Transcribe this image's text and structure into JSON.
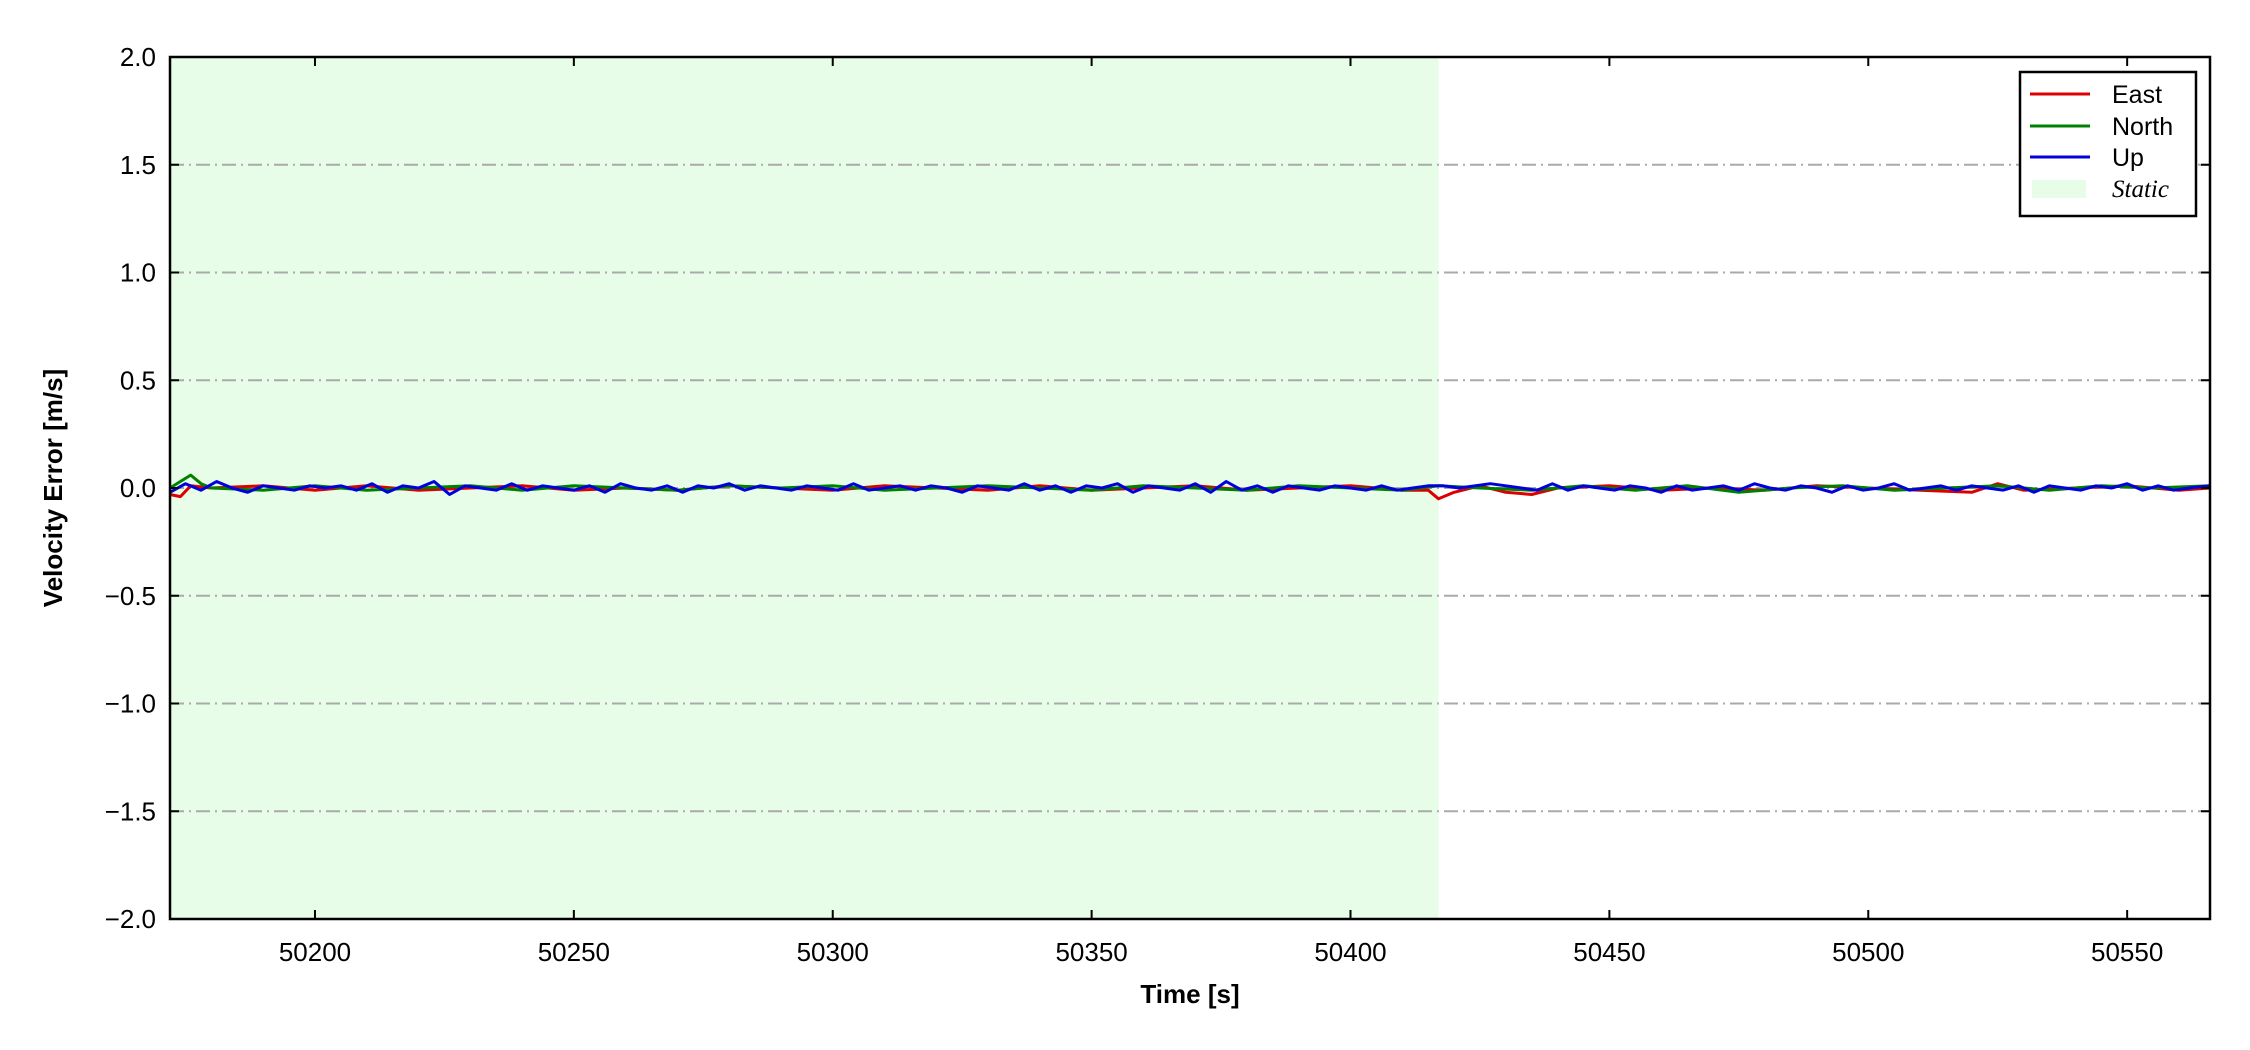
{
  "chart_data": {
    "type": "line",
    "xlabel": "Time [s]",
    "ylabel": "Velocity Error [m/s]",
    "xlim": [
      50172,
      50566
    ],
    "ylim": [
      -2.0,
      2.0
    ],
    "xticks": [
      50200,
      50250,
      50300,
      50350,
      50400,
      50450,
      50500,
      50550
    ],
    "xtick_labels": [
      "50200",
      "50250",
      "50300",
      "50350",
      "50400",
      "50450",
      "50500",
      "50550"
    ],
    "yticks": [
      2.0,
      1.5,
      1.0,
      0.5,
      0.0,
      -0.5,
      -1.0,
      -1.5,
      -2.0
    ],
    "ytick_labels": [
      "2.0",
      "1.5",
      "1.0",
      "0.5",
      "0.0",
      "−0.5",
      "−1.0",
      "−1.5",
      "−2.0"
    ],
    "grid": "horizontal dash-dot",
    "legend_position": "top-right",
    "static_region": {
      "x_start": 50172,
      "x_end": 50417,
      "label": "Static",
      "color": "#e8fde8"
    },
    "series": [
      {
        "name": "East",
        "color": "#dd0000",
        "x": [
          50172,
          50174,
          50176,
          50180,
          50190,
          50200,
          50210,
          50220,
          50230,
          50240,
          50250,
          50260,
          50270,
          50280,
          50290,
          50300,
          50310,
          50320,
          50330,
          50340,
          50350,
          50360,
          50370,
          50380,
          50390,
          50400,
          50410,
          50415,
          50417,
          50420,
          50425,
          50430,
          50435,
          50440,
          50450,
          50460,
          50470,
          50480,
          50490,
          50500,
          50510,
          50520,
          50525,
          50530,
          50540,
          50550,
          50560,
          50566
        ],
        "y": [
          -0.03,
          -0.04,
          0.01,
          0.0,
          0.01,
          -0.01,
          0.01,
          -0.01,
          0.0,
          0.01,
          -0.01,
          0.0,
          -0.01,
          0.01,
          0.0,
          -0.01,
          0.01,
          0.0,
          -0.01,
          0.01,
          -0.01,
          0.0,
          0.01,
          -0.01,
          0.0,
          0.01,
          -0.01,
          -0.01,
          -0.05,
          -0.02,
          0.01,
          -0.02,
          -0.03,
          0.0,
          0.01,
          -0.01,
          0.0,
          -0.01,
          0.01,
          0.0,
          -0.01,
          -0.02,
          0.02,
          -0.01,
          0.0,
          0.01,
          -0.01,
          0.0
        ]
      },
      {
        "name": "North",
        "color": "#008000",
        "x": [
          50172,
          50174,
          50176,
          50178,
          50180,
          50190,
          50200,
          50210,
          50220,
          50230,
          50240,
          50250,
          50260,
          50270,
          50280,
          50290,
          50300,
          50310,
          50320,
          50330,
          50340,
          50350,
          50360,
          50370,
          50380,
          50390,
          50400,
          50410,
          50417,
          50425,
          50435,
          50445,
          50455,
          50465,
          50475,
          50485,
          50495,
          50505,
          50515,
          50525,
          50535,
          50545,
          50555,
          50566
        ],
        "y": [
          0.0,
          0.03,
          0.06,
          0.02,
          0.0,
          -0.01,
          0.01,
          -0.01,
          0.0,
          0.01,
          -0.01,
          0.01,
          0.0,
          -0.01,
          0.01,
          0.0,
          0.01,
          -0.01,
          0.0,
          0.01,
          0.0,
          -0.01,
          0.01,
          0.0,
          -0.01,
          0.01,
          0.0,
          -0.01,
          0.01,
          0.0,
          -0.01,
          0.01,
          -0.01,
          0.01,
          -0.02,
          0.0,
          0.01,
          -0.01,
          0.0,
          0.01,
          -0.01,
          0.01,
          0.0,
          0.01
        ]
      },
      {
        "name": "Up",
        "color": "#0000dd",
        "x": [
          50172,
          50175,
          50178,
          50181,
          50184,
          50187,
          50190,
          50193,
          50196,
          50199,
          50202,
          50205,
          50208,
          50211,
          50214,
          50217,
          50220,
          50223,
          50226,
          50229,
          50232,
          50235,
          50238,
          50241,
          50244,
          50247,
          50250,
          50253,
          50256,
          50259,
          50262,
          50265,
          50268,
          50271,
          50274,
          50277,
          50280,
          50283,
          50286,
          50289,
          50292,
          50295,
          50298,
          50301,
          50304,
          50307,
          50310,
          50313,
          50316,
          50319,
          50322,
          50325,
          50328,
          50331,
          50334,
          50337,
          50340,
          50343,
          50346,
          50349,
          50352,
          50355,
          50358,
          50361,
          50364,
          50367,
          50370,
          50373,
          50376,
          50379,
          50382,
          50385,
          50388,
          50391,
          50394,
          50397,
          50400,
          50403,
          50406,
          50409,
          50412,
          50415,
          50418,
          50421,
          50424,
          50427,
          50430,
          50433,
          50436,
          50439,
          50442,
          50445,
          50448,
          50451,
          50454,
          50457,
          50460,
          50463,
          50466,
          50469,
          50472,
          50475,
          50478,
          50481,
          50484,
          50487,
          50490,
          50493,
          50496,
          50499,
          50502,
          50505,
          50508,
          50511,
          50514,
          50517,
          50520,
          50523,
          50526,
          50529,
          50532,
          50535,
          50538,
          50541,
          50544,
          50547,
          50550,
          50553,
          50556,
          50559,
          50562,
          50566
        ],
        "y": [
          -0.02,
          0.02,
          -0.01,
          0.03,
          0.0,
          -0.02,
          0.01,
          0.0,
          -0.01,
          0.01,
          0.0,
          0.01,
          -0.01,
          0.02,
          -0.02,
          0.01,
          0.0,
          0.03,
          -0.03,
          0.01,
          0.0,
          -0.01,
          0.02,
          -0.01,
          0.01,
          0.0,
          -0.01,
          0.01,
          -0.02,
          0.02,
          0.0,
          -0.01,
          0.01,
          -0.02,
          0.01,
          0.0,
          0.02,
          -0.01,
          0.01,
          0.0,
          -0.01,
          0.01,
          0.0,
          -0.01,
          0.02,
          -0.01,
          0.0,
          0.01,
          -0.01,
          0.01,
          0.0,
          -0.02,
          0.01,
          0.0,
          -0.01,
          0.02,
          -0.01,
          0.01,
          -0.02,
          0.01,
          0.0,
          0.02,
          -0.02,
          0.01,
          0.0,
          -0.01,
          0.02,
          -0.02,
          0.03,
          -0.01,
          0.01,
          -0.02,
          0.01,
          0.0,
          -0.01,
          0.01,
          0.0,
          -0.01,
          0.01,
          -0.01,
          0.0,
          0.01,
          0.01,
          0.0,
          0.01,
          0.02,
          0.01,
          0.0,
          -0.01,
          0.02,
          -0.01,
          0.01,
          0.0,
          -0.01,
          0.01,
          0.0,
          -0.02,
          0.01,
          -0.01,
          0.0,
          0.01,
          -0.01,
          0.02,
          0.0,
          -0.01,
          0.01,
          0.0,
          -0.02,
          0.01,
          -0.01,
          0.0,
          0.02,
          -0.01,
          0.0,
          0.01,
          -0.01,
          0.01,
          0.0,
          -0.01,
          0.01,
          -0.02,
          0.01,
          0.0,
          -0.01,
          0.01,
          0.0,
          0.02,
          -0.01,
          0.01,
          -0.01,
          0.0,
          0.01
        ]
      }
    ],
    "legend_entries": [
      "East",
      "North",
      "Up",
      "Static"
    ]
  }
}
